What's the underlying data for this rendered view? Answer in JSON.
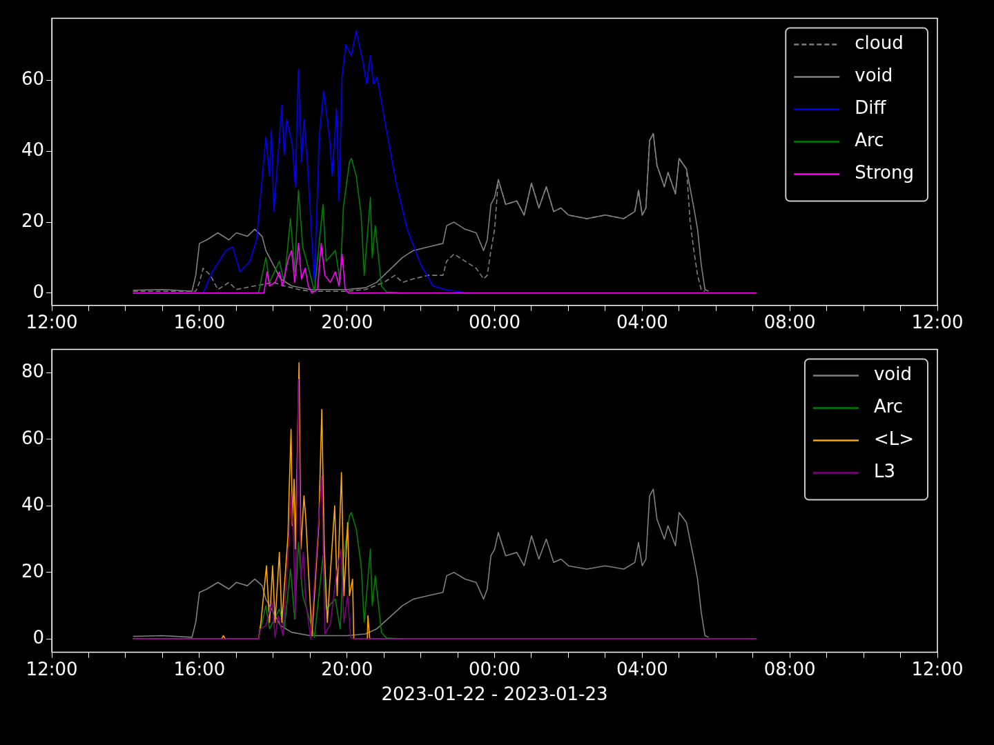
{
  "chart_data": [
    {
      "type": "line",
      "xlim": [
        "2023-01-22T12:00",
        "2023-01-23T12:00"
      ],
      "ylim": [
        -3.5,
        77.5
      ],
      "yticks": [
        0,
        20,
        40,
        60
      ],
      "xticks": [
        {
          "value": "2023-01-22T12:00",
          "label": "12:00"
        },
        {
          "value": "2023-01-22T13:00",
          "label": null
        },
        {
          "value": "2023-01-22T14:00",
          "label": null
        },
        {
          "value": "2023-01-22T15:00",
          "label": null
        },
        {
          "value": "2023-01-22T16:00",
          "label": "16:00"
        },
        {
          "value": "2023-01-22T17:00",
          "label": null
        },
        {
          "value": "2023-01-22T18:00",
          "label": null
        },
        {
          "value": "2023-01-22T19:00",
          "label": null
        },
        {
          "value": "2023-01-22T20:00",
          "label": "20:00"
        },
        {
          "value": "2023-01-22T21:00",
          "label": null
        },
        {
          "value": "2023-01-22T22:00",
          "label": null
        },
        {
          "value": "2023-01-22T23:00",
          "label": null
        },
        {
          "value": "2023-01-23T00:00",
          "label": "00:00"
        },
        {
          "value": "2023-01-23T01:00",
          "label": null
        },
        {
          "value": "2023-01-23T02:00",
          "label": null
        },
        {
          "value": "2023-01-23T03:00",
          "label": null
        },
        {
          "value": "2023-01-23T04:00",
          "label": "04:00"
        },
        {
          "value": "2023-01-23T05:00",
          "label": null
        },
        {
          "value": "2023-01-23T06:00",
          "label": null
        },
        {
          "value": "2023-01-23T07:00",
          "label": null
        },
        {
          "value": "2023-01-23T08:00",
          "label": "08:00"
        },
        {
          "value": "2023-01-23T09:00",
          "label": null
        },
        {
          "value": "2023-01-23T10:00",
          "label": null
        },
        {
          "value": "2023-01-23T11:00",
          "label": null
        },
        {
          "value": "2023-01-23T12:00",
          "label": "12:00"
        }
      ],
      "grid": false,
      "legend": "top right",
      "series": [
        {
          "name": "cloud",
          "color": "#808080",
          "line_style": "dashed",
          "x": [
            "2023-01-22T14:12",
            "2023-01-22T15:54",
            "2023-01-22T16:00",
            "2023-01-22T16:06",
            "2023-01-22T16:18",
            "2023-01-22T16:30",
            "2023-01-22T16:48",
            "2023-01-22T17:00",
            "2023-01-22T17:30",
            "2023-01-22T18:00",
            "2023-01-22T18:18",
            "2023-01-22T18:42",
            "2023-01-22T19:00",
            "2023-01-22T20:00",
            "2023-01-22T20:30",
            "2023-01-22T21:00",
            "2023-01-22T21:18",
            "2023-01-22T21:30",
            "2023-01-22T21:48",
            "2023-01-22T22:12",
            "2023-01-22T22:36",
            "2023-01-22T22:42",
            "2023-01-22T22:54",
            "2023-01-22T23:12",
            "2023-01-22T23:30",
            "2023-01-22T23:42",
            "2023-01-22T23:48",
            "2023-01-22T23:54",
            "2023-01-23T00:00",
            "2023-01-23T00:06",
            "2023-01-23T00:18",
            "2023-01-23T00:36",
            "2023-01-23T00:48",
            "2023-01-23T01:00",
            "2023-01-23T01:12",
            "2023-01-23T01:24",
            "2023-01-23T01:36",
            "2023-01-23T01:48",
            "2023-01-23T02:00",
            "2023-01-23T02:30",
            "2023-01-23T03:00",
            "2023-01-23T03:30",
            "2023-01-23T03:48",
            "2023-01-23T03:54",
            "2023-01-23T04:00",
            "2023-01-23T04:06",
            "2023-01-23T04:12",
            "2023-01-23T04:18",
            "2023-01-23T04:24",
            "2023-01-23T04:36",
            "2023-01-23T04:42",
            "2023-01-23T04:54",
            "2023-01-23T05:00",
            "2023-01-23T05:12",
            "2023-01-23T05:18",
            "2023-01-23T05:24",
            "2023-01-23T05:30",
            "2023-01-23T05:36",
            "2023-01-23T05:42"
          ],
          "values": [
            0.5,
            0.5,
            3,
            7,
            5,
            1,
            3,
            1,
            2,
            3,
            2,
            1,
            0.5,
            0.5,
            1,
            3,
            5,
            3,
            4,
            5,
            5,
            9,
            11,
            9,
            7,
            4,
            5,
            12,
            18,
            32,
            25,
            26,
            22,
            31,
            24,
            30,
            23,
            24,
            22,
            21,
            22,
            21,
            23,
            29,
            22,
            24,
            43,
            45,
            36,
            30,
            34,
            28,
            38,
            35,
            20,
            12,
            5,
            1,
            0.5
          ]
        },
        {
          "name": "void",
          "color": "#808080",
          "x": [
            "2023-01-22T14:12",
            "2023-01-22T15:00",
            "2023-01-22T15:48",
            "2023-01-22T15:54",
            "2023-01-22T16:00",
            "2023-01-22T16:12",
            "2023-01-22T16:30",
            "2023-01-22T16:48",
            "2023-01-22T17:00",
            "2023-01-22T17:18",
            "2023-01-22T17:30",
            "2023-01-22T17:42",
            "2023-01-22T17:48",
            "2023-01-22T18:00",
            "2023-01-22T18:12",
            "2023-01-22T18:30",
            "2023-01-22T19:00",
            "2023-01-22T19:30",
            "2023-01-22T20:00",
            "2023-01-22T20:30",
            "2023-01-22T20:48",
            "2023-01-22T21:12",
            "2023-01-22T21:30",
            "2023-01-22T21:48",
            "2023-01-22T22:12",
            "2023-01-22T22:36",
            "2023-01-22T22:42",
            "2023-01-22T22:54",
            "2023-01-22T23:12",
            "2023-01-22T23:30",
            "2023-01-22T23:42",
            "2023-01-22T23:48",
            "2023-01-22T23:54",
            "2023-01-23T00:00",
            "2023-01-23T00:06",
            "2023-01-23T00:18",
            "2023-01-23T00:36",
            "2023-01-23T00:48",
            "2023-01-23T01:00",
            "2023-01-23T01:12",
            "2023-01-23T01:24",
            "2023-01-23T01:36",
            "2023-01-23T01:48",
            "2023-01-23T02:00",
            "2023-01-23T02:30",
            "2023-01-23T03:00",
            "2023-01-23T03:30",
            "2023-01-23T03:48",
            "2023-01-23T03:54",
            "2023-01-23T04:00",
            "2023-01-23T04:06",
            "2023-01-23T04:12",
            "2023-01-23T04:18",
            "2023-01-23T04:24",
            "2023-01-23T04:36",
            "2023-01-23T04:42",
            "2023-01-23T04:54",
            "2023-01-23T05:00",
            "2023-01-23T05:12",
            "2023-01-23T05:24",
            "2023-01-23T05:30",
            "2023-01-23T05:36",
            "2023-01-23T05:42",
            "2023-01-23T05:48"
          ],
          "values": [
            0.8,
            1,
            0.5,
            5,
            14,
            15,
            17,
            15,
            17,
            16,
            18,
            16,
            12,
            8,
            4,
            2,
            1,
            1,
            1,
            1.5,
            3,
            7,
            10,
            12,
            13,
            14,
            19,
            20,
            18,
            17,
            12,
            15,
            25,
            27,
            32,
            25,
            26,
            22,
            31,
            24,
            30,
            23,
            24,
            22,
            21,
            22,
            21,
            23,
            29,
            22,
            24,
            43,
            45,
            36,
            30,
            34,
            28,
            38,
            35,
            24,
            18,
            8,
            1,
            0.5
          ]
        },
        {
          "name": "Diff",
          "color": "#0000ff",
          "x": [
            "2023-01-22T14:12",
            "2023-01-22T16:06",
            "2023-01-22T16:21",
            "2023-01-22T16:43",
            "2023-01-22T16:54",
            "2023-01-22T17:06",
            "2023-01-22T17:22",
            "2023-01-22T17:33",
            "2023-01-22T17:48",
            "2023-01-22T17:54",
            "2023-01-22T17:57",
            "2023-01-22T18:01",
            "2023-01-22T18:14",
            "2023-01-22T18:18",
            "2023-01-22T18:22",
            "2023-01-22T18:31",
            "2023-01-22T18:36",
            "2023-01-22T18:41",
            "2023-01-22T18:46",
            "2023-01-22T18:50",
            "2023-01-22T18:56",
            "2023-01-22T19:07",
            "2023-01-22T19:15",
            "2023-01-22T19:22",
            "2023-01-22T19:32",
            "2023-01-22T19:36",
            "2023-01-22T19:43",
            "2023-01-22T19:47",
            "2023-01-22T19:52",
            "2023-01-22T19:58",
            "2023-01-22T20:07",
            "2023-01-22T20:15",
            "2023-01-22T20:26",
            "2023-01-22T20:32",
            "2023-01-22T20:38",
            "2023-01-22T20:43",
            "2023-01-22T20:49",
            "2023-01-22T21:04",
            "2023-01-22T21:20",
            "2023-01-22T21:38",
            "2023-01-22T22:00",
            "2023-01-22T22:20",
            "2023-01-22T22:39",
            "2023-01-22T23:18"
          ],
          "values": [
            0,
            0,
            6,
            12,
            13,
            6,
            9,
            15,
            44,
            33,
            46,
            23,
            53,
            39,
            49,
            42,
            30,
            63,
            37,
            49,
            36,
            3,
            44,
            57,
            43,
            33,
            52,
            26,
            61,
            70,
            67,
            74,
            65,
            59,
            67,
            59,
            61,
            46,
            31,
            18,
            8,
            2,
            1,
            0
          ]
        },
        {
          "name": "Arc",
          "color": "#008000",
          "x": [
            "2023-01-22T14:12",
            "2023-01-22T17:36",
            "2023-01-22T17:48",
            "2023-01-22T17:54",
            "2023-01-22T18:10",
            "2023-01-22T18:18",
            "2023-01-22T18:28",
            "2023-01-22T18:35",
            "2023-01-22T18:41",
            "2023-01-22T18:48",
            "2023-01-22T18:59",
            "2023-01-22T19:07",
            "2023-01-22T19:21",
            "2023-01-22T19:26",
            "2023-01-22T19:41",
            "2023-01-22T19:49",
            "2023-01-22T19:54",
            "2023-01-22T20:04",
            "2023-01-22T20:07",
            "2023-01-22T20:15",
            "2023-01-22T20:23",
            "2023-01-22T20:28",
            "2023-01-22T20:38",
            "2023-01-22T20:41",
            "2023-01-22T20:46",
            "2023-01-22T20:56",
            "2023-01-22T21:04",
            "2023-01-22T21:30"
          ],
          "values": [
            0,
            0,
            10,
            3,
            9,
            3,
            21,
            6,
            29,
            13,
            6,
            0.5,
            25,
            9,
            12,
            3,
            24,
            37,
            38,
            33,
            22,
            5,
            27,
            10,
            19,
            2,
            0.3,
            0
          ]
        },
        {
          "name": "Strong",
          "color": "#ff00ff",
          "x": [
            "2023-01-22T14:12",
            "2023-01-22T17:45",
            "2023-01-22T17:50",
            "2023-01-22T17:54",
            "2023-01-22T18:03",
            "2023-01-22T18:10",
            "2023-01-22T18:15",
            "2023-01-22T18:25",
            "2023-01-22T18:30",
            "2023-01-22T18:35",
            "2023-01-22T18:41",
            "2023-01-22T18:46",
            "2023-01-22T18:52",
            "2023-01-22T18:57",
            "2023-01-22T19:03",
            "2023-01-22T19:12",
            "2023-01-22T19:18",
            "2023-01-22T19:24",
            "2023-01-22T19:33",
            "2023-01-22T19:41",
            "2023-01-22T19:47",
            "2023-01-22T19:52",
            "2023-01-22T19:57",
            "2023-01-22T20:03",
            "2023-01-23T07:06"
          ],
          "values": [
            0,
            0,
            6,
            2,
            3,
            6,
            2,
            10,
            12,
            3,
            14,
            4,
            7,
            2,
            0,
            1,
            14,
            5,
            3,
            6,
            2,
            11,
            1,
            0,
            0
          ]
        }
      ]
    },
    {
      "type": "line",
      "xlabel": "2023-01-22 - 2023-01-23",
      "xlim": [
        "2023-01-22T12:00",
        "2023-01-23T12:00"
      ],
      "ylim": [
        -4,
        87
      ],
      "yticks": [
        0,
        20,
        40,
        60,
        80
      ],
      "xticks": [
        {
          "value": "2023-01-22T12:00",
          "label": "12:00"
        },
        {
          "value": "2023-01-22T13:00",
          "label": null
        },
        {
          "value": "2023-01-22T14:00",
          "label": null
        },
        {
          "value": "2023-01-22T15:00",
          "label": null
        },
        {
          "value": "2023-01-22T16:00",
          "label": "16:00"
        },
        {
          "value": "2023-01-22T17:00",
          "label": null
        },
        {
          "value": "2023-01-22T18:00",
          "label": null
        },
        {
          "value": "2023-01-22T19:00",
          "label": null
        },
        {
          "value": "2023-01-22T20:00",
          "label": "20:00"
        },
        {
          "value": "2023-01-22T21:00",
          "label": null
        },
        {
          "value": "2023-01-22T22:00",
          "label": null
        },
        {
          "value": "2023-01-22T23:00",
          "label": null
        },
        {
          "value": "2023-01-23T00:00",
          "label": "00:00"
        },
        {
          "value": "2023-01-23T01:00",
          "label": null
        },
        {
          "value": "2023-01-23T02:00",
          "label": null
        },
        {
          "value": "2023-01-23T03:00",
          "label": null
        },
        {
          "value": "2023-01-23T04:00",
          "label": "04:00"
        },
        {
          "value": "2023-01-23T05:00",
          "label": null
        },
        {
          "value": "2023-01-23T06:00",
          "label": null
        },
        {
          "value": "2023-01-23T07:00",
          "label": null
        },
        {
          "value": "2023-01-23T08:00",
          "label": "08:00"
        },
        {
          "value": "2023-01-23T09:00",
          "label": null
        },
        {
          "value": "2023-01-23T10:00",
          "label": null
        },
        {
          "value": "2023-01-23T11:00",
          "label": null
        },
        {
          "value": "2023-01-23T12:00",
          "label": "12:00"
        }
      ],
      "grid": false,
      "legend": "top right",
      "series": [
        {
          "name": "void",
          "color": "#808080",
          "x": [
            "2023-01-22T14:12",
            "2023-01-22T15:00",
            "2023-01-22T15:48",
            "2023-01-22T15:54",
            "2023-01-22T16:00",
            "2023-01-22T16:12",
            "2023-01-22T16:30",
            "2023-01-22T16:48",
            "2023-01-22T17:00",
            "2023-01-22T17:18",
            "2023-01-22T17:30",
            "2023-01-22T17:42",
            "2023-01-22T17:48",
            "2023-01-22T18:00",
            "2023-01-22T18:12",
            "2023-01-22T18:30",
            "2023-01-22T19:00",
            "2023-01-22T19:30",
            "2023-01-22T20:00",
            "2023-01-22T20:30",
            "2023-01-22T20:48",
            "2023-01-22T21:12",
            "2023-01-22T21:30",
            "2023-01-22T21:48",
            "2023-01-22T22:12",
            "2023-01-22T22:36",
            "2023-01-22T22:42",
            "2023-01-22T22:54",
            "2023-01-22T23:12",
            "2023-01-22T23:30",
            "2023-01-22T23:42",
            "2023-01-22T23:48",
            "2023-01-22T23:54",
            "2023-01-23T00:00",
            "2023-01-23T00:06",
            "2023-01-23T00:18",
            "2023-01-23T00:36",
            "2023-01-23T00:48",
            "2023-01-23T01:00",
            "2023-01-23T01:12",
            "2023-01-23T01:24",
            "2023-01-23T01:36",
            "2023-01-23T01:48",
            "2023-01-23T02:00",
            "2023-01-23T02:30",
            "2023-01-23T03:00",
            "2023-01-23T03:30",
            "2023-01-23T03:48",
            "2023-01-23T03:54",
            "2023-01-23T04:00",
            "2023-01-23T04:06",
            "2023-01-23T04:12",
            "2023-01-23T04:18",
            "2023-01-23T04:24",
            "2023-01-23T04:36",
            "2023-01-23T04:42",
            "2023-01-23T04:54",
            "2023-01-23T05:00",
            "2023-01-23T05:12",
            "2023-01-23T05:24",
            "2023-01-23T05:30",
            "2023-01-23T05:36",
            "2023-01-23T05:42",
            "2023-01-23T05:48"
          ],
          "values": [
            0.8,
            1,
            0.5,
            5,
            14,
            15,
            17,
            15,
            17,
            16,
            18,
            16,
            12,
            8,
            4,
            2,
            1,
            1,
            1,
            1.5,
            3,
            7,
            10,
            12,
            13,
            14,
            19,
            20,
            18,
            17,
            12,
            15,
            25,
            27,
            32,
            25,
            26,
            22,
            31,
            24,
            30,
            23,
            24,
            22,
            21,
            22,
            21,
            23,
            29,
            22,
            24,
            43,
            45,
            36,
            30,
            34,
            28,
            38,
            35,
            24,
            18,
            8,
            1,
            0.5
          ]
        },
        {
          "name": "Arc",
          "color": "#008000",
          "x": [
            "2023-01-22T14:12",
            "2023-01-22T17:36",
            "2023-01-22T17:48",
            "2023-01-22T17:54",
            "2023-01-22T18:10",
            "2023-01-22T18:18",
            "2023-01-22T18:28",
            "2023-01-22T18:35",
            "2023-01-22T18:41",
            "2023-01-22T18:48",
            "2023-01-22T18:59",
            "2023-01-22T19:07",
            "2023-01-22T19:21",
            "2023-01-22T19:26",
            "2023-01-22T19:41",
            "2023-01-22T19:49",
            "2023-01-22T19:54",
            "2023-01-22T20:04",
            "2023-01-22T20:07",
            "2023-01-22T20:15",
            "2023-01-22T20:23",
            "2023-01-22T20:28",
            "2023-01-22T20:38",
            "2023-01-22T20:41",
            "2023-01-22T20:46",
            "2023-01-22T20:56",
            "2023-01-22T21:04",
            "2023-01-22T21:30"
          ],
          "values": [
            0,
            0,
            10,
            3,
            9,
            3,
            21,
            6,
            29,
            13,
            6,
            0.5,
            25,
            9,
            12,
            3,
            24,
            37,
            38,
            33,
            22,
            5,
            27,
            10,
            19,
            2,
            0.3,
            0
          ]
        },
        {
          "name": "<L>",
          "color": "#ffa500",
          "x": [
            "2023-01-22T14:12",
            "2023-01-22T16:36",
            "2023-01-22T16:39",
            "2023-01-22T16:42",
            "2023-01-22T17:36",
            "2023-01-22T17:40",
            "2023-01-22T17:49",
            "2023-01-22T17:54",
            "2023-01-22T17:59",
            "2023-01-22T18:03",
            "2023-01-22T18:10",
            "2023-01-22T18:14",
            "2023-01-22T18:24",
            "2023-01-22T18:26",
            "2023-01-22T18:29",
            "2023-01-22T18:31",
            "2023-01-22T18:34",
            "2023-01-22T18:36",
            "2023-01-22T18:42",
            "2023-01-22T18:45",
            "2023-01-22T18:50",
            "2023-01-22T18:53",
            "2023-01-22T18:58",
            "2023-01-22T19:03",
            "2023-01-22T19:14",
            "2023-01-22T19:19",
            "2023-01-22T19:23",
            "2023-01-22T19:28",
            "2023-01-22T19:33",
            "2023-01-22T19:40",
            "2023-01-22T19:44",
            "2023-01-22T19:51",
            "2023-01-22T19:55",
            "2023-01-22T20:01",
            "2023-01-22T20:04",
            "2023-01-22T20:09",
            "2023-01-22T20:11",
            "2023-01-22T20:33",
            "2023-01-22T20:34",
            "2023-01-22T20:37",
            "2023-01-23T07:06"
          ],
          "values": [
            0,
            0,
            1,
            0,
            0,
            5,
            22,
            5,
            22,
            5,
            26,
            5,
            31,
            45,
            63,
            34,
            48,
            27,
            83,
            27,
            43,
            36,
            18,
            1,
            34,
            69,
            27,
            5,
            20,
            40,
            13,
            50,
            13,
            35,
            13,
            18,
            0,
            0,
            7,
            0,
            0
          ]
        },
        {
          "name": "L3",
          "color": "#800080",
          "x": [
            "2023-01-22T14:12",
            "2023-01-22T17:36",
            "2023-01-22T17:39",
            "2023-01-22T17:48",
            "2023-01-22T17:58",
            "2023-01-22T18:03",
            "2023-01-22T18:08",
            "2023-01-22T18:16",
            "2023-01-22T18:26",
            "2023-01-22T18:29",
            "2023-01-22T18:33",
            "2023-01-22T18:36",
            "2023-01-22T18:41",
            "2023-01-22T18:45",
            "2023-01-22T18:49",
            "2023-01-22T18:53",
            "2023-01-22T19:01",
            "2023-01-22T19:14",
            "2023-01-22T19:19",
            "2023-01-22T19:24",
            "2023-01-22T19:33",
            "2023-01-22T19:43",
            "2023-01-22T19:50",
            "2023-01-22T19:55",
            "2023-01-22T20:01",
            "2023-01-22T20:06",
            "2023-01-22T20:12",
            "2023-01-23T07:06"
          ],
          "values": [
            0,
            0,
            3,
            4,
            11,
            0.5,
            7,
            1,
            32,
            44,
            31,
            6,
            78,
            18,
            26,
            11,
            0,
            36,
            49,
            1.5,
            4.5,
            20,
            27,
            5,
            13,
            0.5,
            0,
            0
          ]
        }
      ]
    }
  ]
}
